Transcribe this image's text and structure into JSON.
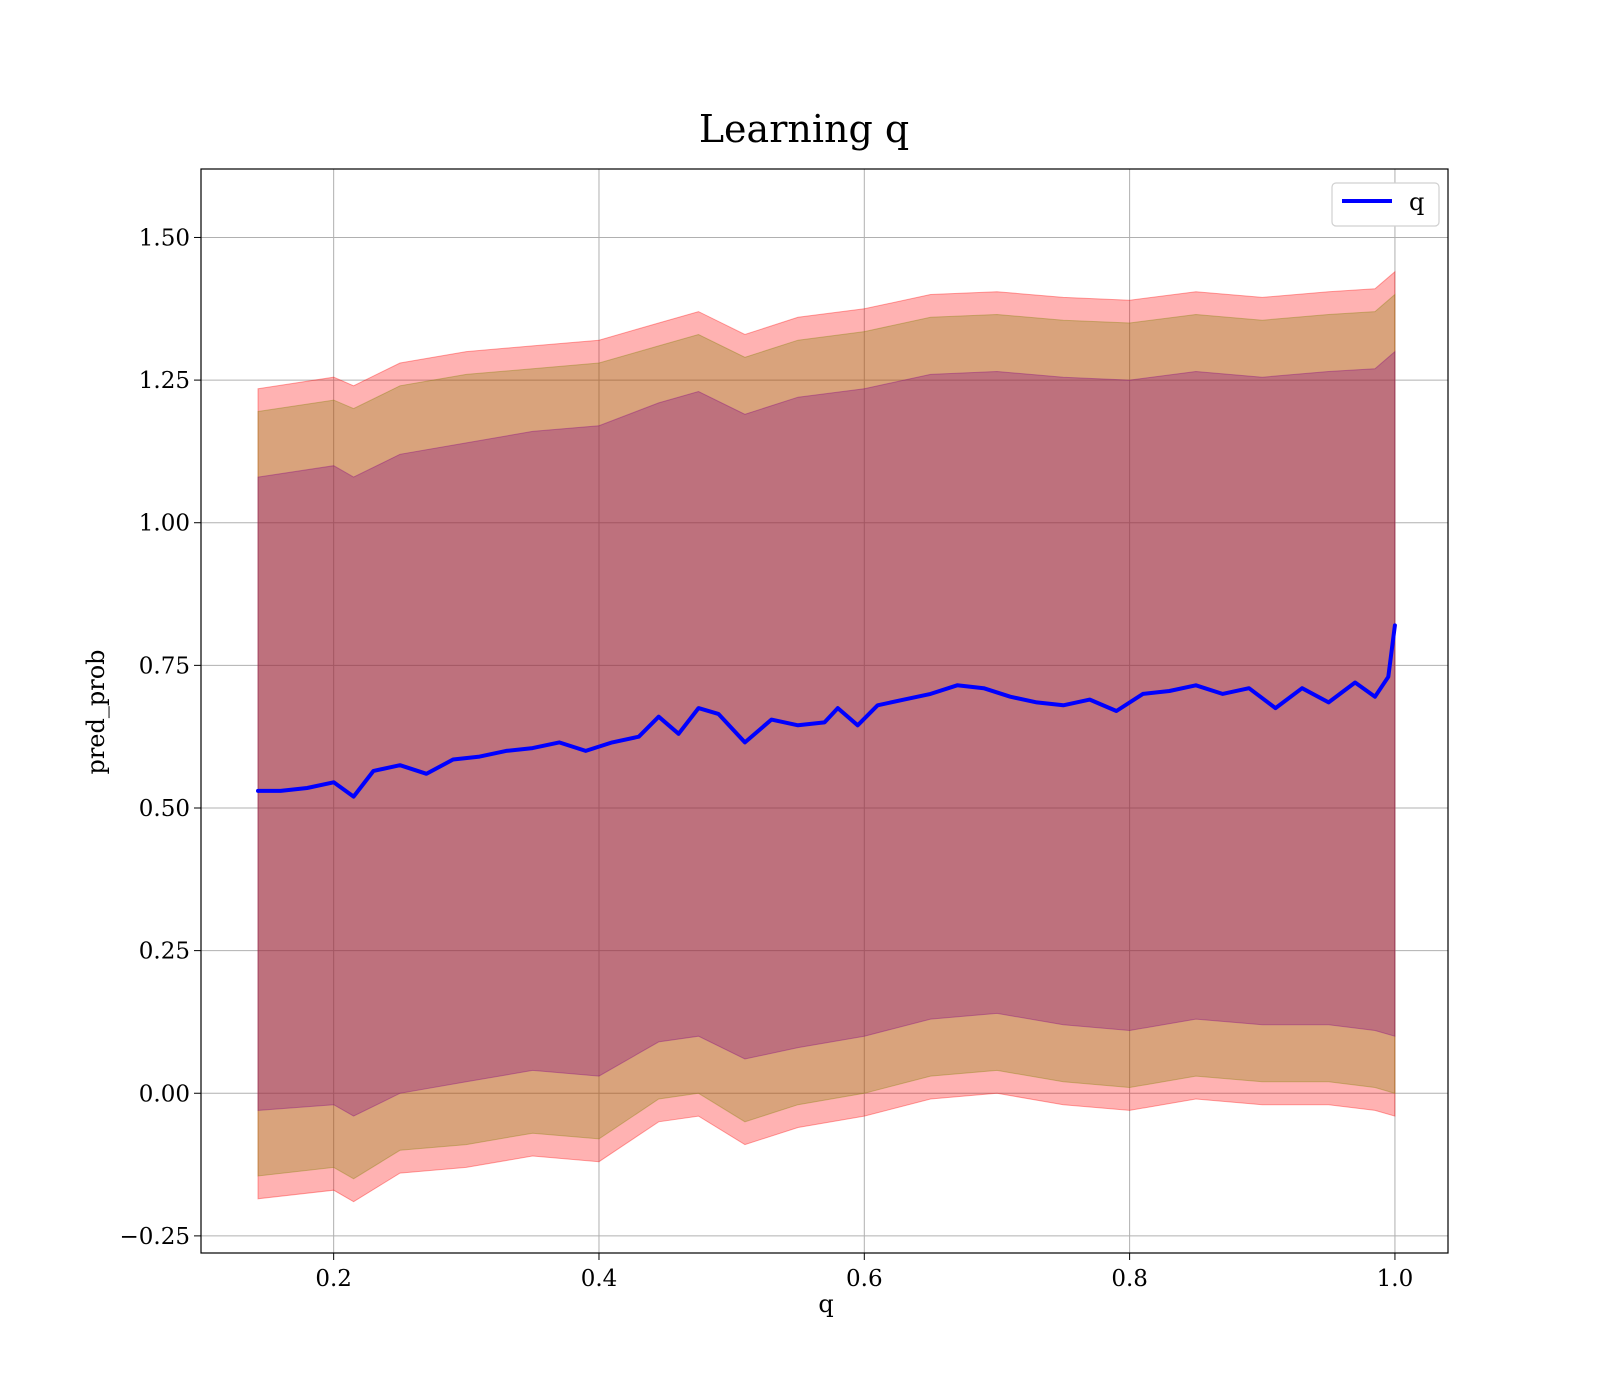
{
  "chart_data": {
    "type": "line",
    "title": "Learning q",
    "xlabel": "q",
    "ylabel": "pred_prob",
    "xlim": [
      0.1,
      1.04
    ],
    "ylim": [
      -0.28,
      1.62
    ],
    "grid": true,
    "legend": {
      "position": "top-right",
      "entries": [
        "q"
      ]
    },
    "x_ticks": [
      {
        "value": 0.2,
        "label": "0.2"
      },
      {
        "value": 0.4,
        "label": "0.4"
      },
      {
        "value": 0.6,
        "label": "0.6"
      },
      {
        "value": 0.8,
        "label": "0.8"
      },
      {
        "value": 1.0,
        "label": "1.0"
      }
    ],
    "y_ticks": [
      {
        "value": -0.25,
        "label": "−0.25"
      },
      {
        "value": 0.0,
        "label": "0.00"
      },
      {
        "value": 0.25,
        "label": "0.25"
      },
      {
        "value": 0.5,
        "label": "0.50"
      },
      {
        "value": 0.75,
        "label": "0.75"
      },
      {
        "value": 1.0,
        "label": "1.00"
      },
      {
        "value": 1.25,
        "label": "1.25"
      },
      {
        "value": 1.5,
        "label": "1.50"
      }
    ],
    "series": [
      {
        "name": "q",
        "color": "#0000ff",
        "x": [
          0.143,
          0.16,
          0.18,
          0.2,
          0.215,
          0.23,
          0.25,
          0.27,
          0.29,
          0.31,
          0.33,
          0.35,
          0.37,
          0.39,
          0.41,
          0.43,
          0.445,
          0.46,
          0.475,
          0.49,
          0.51,
          0.53,
          0.55,
          0.57,
          0.58,
          0.595,
          0.61,
          0.63,
          0.65,
          0.67,
          0.69,
          0.71,
          0.73,
          0.75,
          0.77,
          0.79,
          0.81,
          0.83,
          0.85,
          0.87,
          0.89,
          0.91,
          0.93,
          0.95,
          0.97,
          0.985,
          0.995,
          1.0
        ],
        "y": [
          0.53,
          0.53,
          0.535,
          0.545,
          0.52,
          0.565,
          0.575,
          0.56,
          0.585,
          0.59,
          0.6,
          0.605,
          0.615,
          0.6,
          0.615,
          0.625,
          0.66,
          0.63,
          0.675,
          0.665,
          0.615,
          0.655,
          0.645,
          0.65,
          0.675,
          0.645,
          0.68,
          0.69,
          0.7,
          0.715,
          0.71,
          0.695,
          0.685,
          0.68,
          0.69,
          0.67,
          0.7,
          0.705,
          0.715,
          0.7,
          0.71,
          0.675,
          0.71,
          0.685,
          0.72,
          0.695,
          0.73,
          0.82
        ]
      }
    ],
    "bands": [
      {
        "color": "#ff0000",
        "opacity": 0.3,
        "x": [
          0.143,
          0.2,
          0.215,
          0.25,
          0.3,
          0.35,
          0.4,
          0.445,
          0.475,
          0.51,
          0.55,
          0.6,
          0.65,
          0.7,
          0.75,
          0.8,
          0.85,
          0.9,
          0.95,
          0.985,
          1.0
        ],
        "upper": [
          1.235,
          1.255,
          1.24,
          1.28,
          1.3,
          1.31,
          1.32,
          1.35,
          1.37,
          1.33,
          1.36,
          1.375,
          1.4,
          1.405,
          1.395,
          1.39,
          1.405,
          1.395,
          1.405,
          1.41,
          1.44
        ],
        "lower": [
          -0.185,
          -0.17,
          -0.19,
          -0.14,
          -0.13,
          -0.11,
          -0.12,
          -0.05,
          -0.04,
          -0.09,
          -0.06,
          -0.04,
          -0.01,
          0.0,
          -0.02,
          -0.03,
          -0.01,
          -0.02,
          -0.02,
          -0.03,
          -0.04
        ]
      },
      {
        "color": "#808000",
        "opacity": 0.3,
        "x": [
          0.143,
          0.2,
          0.215,
          0.25,
          0.3,
          0.35,
          0.4,
          0.445,
          0.475,
          0.51,
          0.55,
          0.6,
          0.65,
          0.7,
          0.75,
          0.8,
          0.85,
          0.9,
          0.95,
          0.985,
          1.0
        ],
        "upper": [
          1.195,
          1.215,
          1.2,
          1.24,
          1.26,
          1.27,
          1.28,
          1.31,
          1.33,
          1.29,
          1.32,
          1.335,
          1.36,
          1.365,
          1.355,
          1.35,
          1.365,
          1.355,
          1.365,
          1.37,
          1.4
        ],
        "lower": [
          -0.145,
          -0.13,
          -0.15,
          -0.1,
          -0.09,
          -0.07,
          -0.08,
          -0.01,
          0.0,
          -0.05,
          -0.02,
          0.0,
          0.03,
          0.04,
          0.02,
          0.01,
          0.03,
          0.02,
          0.02,
          0.01,
          0.0
        ]
      },
      {
        "color": "#800080",
        "opacity": 0.3,
        "x": [
          0.143,
          0.2,
          0.215,
          0.25,
          0.3,
          0.35,
          0.4,
          0.445,
          0.475,
          0.51,
          0.55,
          0.6,
          0.65,
          0.7,
          0.75,
          0.8,
          0.85,
          0.9,
          0.95,
          0.985,
          1.0
        ],
        "upper": [
          1.08,
          1.1,
          1.08,
          1.12,
          1.14,
          1.16,
          1.17,
          1.21,
          1.23,
          1.19,
          1.22,
          1.235,
          1.26,
          1.265,
          1.255,
          1.25,
          1.265,
          1.255,
          1.265,
          1.27,
          1.3
        ],
        "lower": [
          -0.03,
          -0.02,
          -0.04,
          0.0,
          0.02,
          0.04,
          0.03,
          0.09,
          0.1,
          0.06,
          0.08,
          0.1,
          0.13,
          0.14,
          0.12,
          0.11,
          0.13,
          0.12,
          0.12,
          0.11,
          0.1
        ]
      }
    ]
  }
}
